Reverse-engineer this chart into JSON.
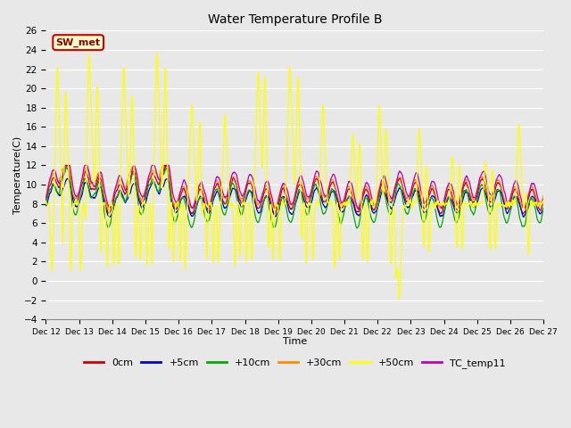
{
  "title": "Water Temperature Profile B",
  "xlabel": "Time",
  "ylabel": "Temperature(C)",
  "ylim": [
    -4,
    26
  ],
  "yticks": [
    -4,
    -2,
    0,
    2,
    4,
    6,
    8,
    10,
    12,
    14,
    16,
    18,
    20,
    22,
    24,
    26
  ],
  "x_labels": [
    "Dec 12",
    "Dec 13",
    "Dec 14",
    "Dec 15",
    "Dec 16",
    "Dec 17",
    "Dec 18",
    "Dec 19",
    "Dec 20",
    "Dec 21",
    "Dec 22",
    "Dec 23",
    "Dec 24",
    "Dec 25",
    "Dec 26",
    "Dec 27"
  ],
  "plot_bg_color": "#e8e8e8",
  "grid_color": "#ffffff",
  "colors": {
    "0cm": "#cc0000",
    "+5cm": "#0000cc",
    "+10cm": "#00aa00",
    "+30cm": "#ff8800",
    "+50cm": "#ffff00",
    "TC_temp11": "#bb00bb"
  },
  "sw_met_text": "SW_met",
  "n_points": 1500
}
